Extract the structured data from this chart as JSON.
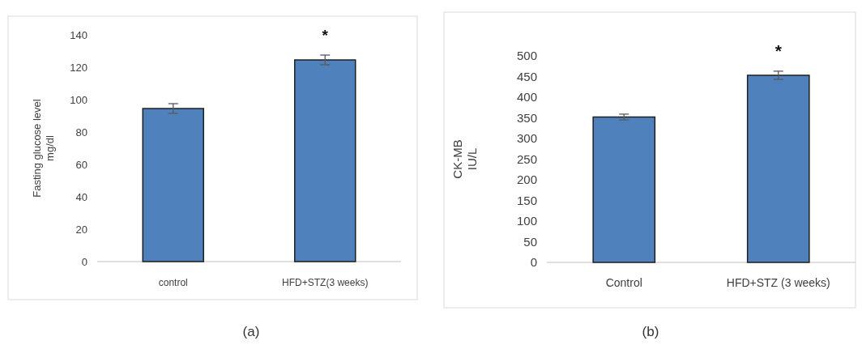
{
  "chart_data": [
    {
      "type": "bar",
      "ylabel": "Fasting glucose level\nmg/dl",
      "categories": [
        "control",
        "HFD+STZ(3 weeks)"
      ],
      "values": [
        94.5,
        124.5
      ],
      "errors": [
        3,
        3
      ],
      "color": "#4f81bd",
      "ylim": [
        0,
        140
      ],
      "yticks": [
        0,
        20,
        40,
        60,
        80,
        100,
        120,
        140
      ],
      "grid": false,
      "annotations": [
        "*",
        "(a)"
      ]
    },
    {
      "type": "bar",
      "ylabel": "CK-MB\nIU/L",
      "categories": [
        "Control",
        "HFD+STZ (3 weeks)"
      ],
      "values": [
        352,
        453
      ],
      "errors": [
        7,
        10
      ],
      "color": "#4f81bd",
      "ylim": [
        0,
        500
      ],
      "yticks": [
        0,
        50,
        100,
        150,
        200,
        250,
        300,
        350,
        400,
        450,
        500
      ],
      "grid": false,
      "annotations": [
        "*",
        "(b)"
      ]
    }
  ]
}
